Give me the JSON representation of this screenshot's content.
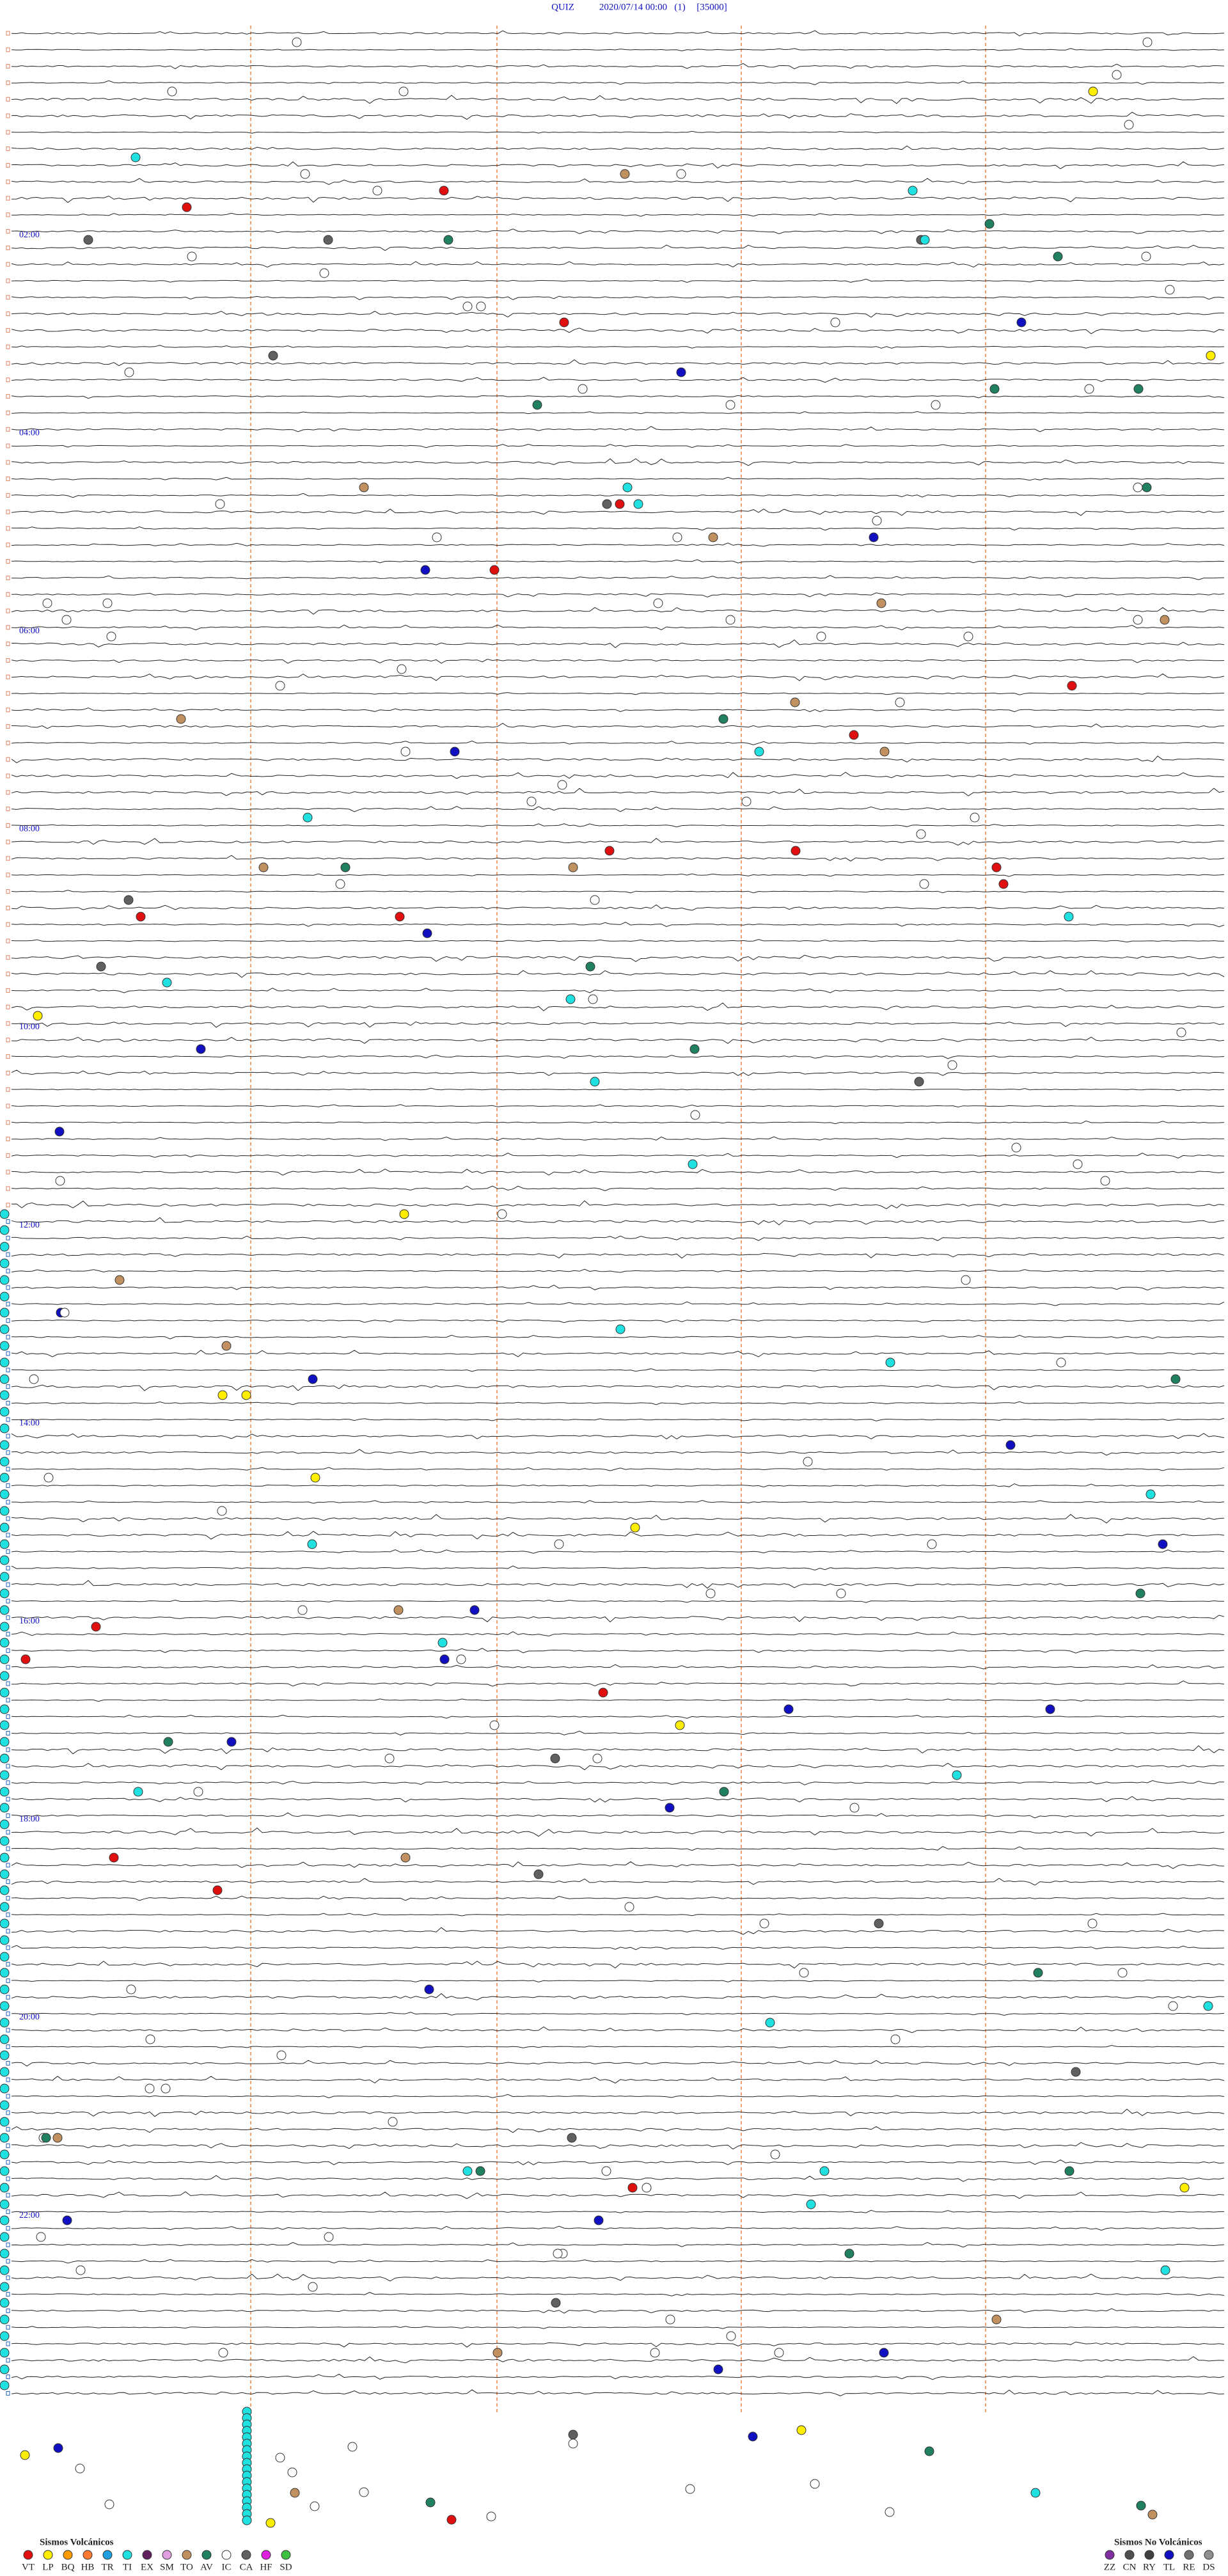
{
  "header": {
    "station": "QUIZ",
    "datetime": "2020/07/14 00:00",
    "channel": "(1)",
    "scale": "[35000]"
  },
  "hour_labels": [
    "02:00",
    "04:00",
    "06:00",
    "08:00",
    "10:00",
    "12:00",
    "14:00",
    "16:00",
    "18:00",
    "20:00",
    "22:00"
  ],
  "legend": {
    "volcanic": {
      "title": "Sismos Volcánicos",
      "items": [
        {
          "code": "VT",
          "color": "#e01010"
        },
        {
          "code": "LP",
          "color": "#ffee00"
        },
        {
          "code": "BQ",
          "color": "#ff9a00"
        },
        {
          "code": "HB",
          "color": "#ff7a30"
        },
        {
          "code": "TR",
          "color": "#20a0e0"
        },
        {
          "code": "TI",
          "color": "#20e0e0"
        },
        {
          "code": "EX",
          "color": "#602060"
        },
        {
          "code": "SM",
          "color": "#e0a0e0"
        },
        {
          "code": "TO",
          "color": "#c09060"
        },
        {
          "code": "AV",
          "color": "#208060"
        },
        {
          "code": "IC",
          "color": "#ffffff"
        },
        {
          "code": "CA",
          "color": "#606060"
        },
        {
          "code": "HF",
          "color": "#e020e0"
        },
        {
          "code": "SD",
          "color": "#40c040"
        }
      ]
    },
    "non_volcanic": {
      "title": "Sismos No Volcánicos",
      "items": [
        {
          "code": "ZZ",
          "color": "#8030a0"
        },
        {
          "code": "CN",
          "color": "#505050"
        },
        {
          "code": "RY",
          "color": "#404040"
        },
        {
          "code": "TL",
          "color": "#1010c0"
        },
        {
          "code": "RE",
          "color": "#707070"
        },
        {
          "code": "DS",
          "color": "#909090"
        }
      ]
    }
  }
}
